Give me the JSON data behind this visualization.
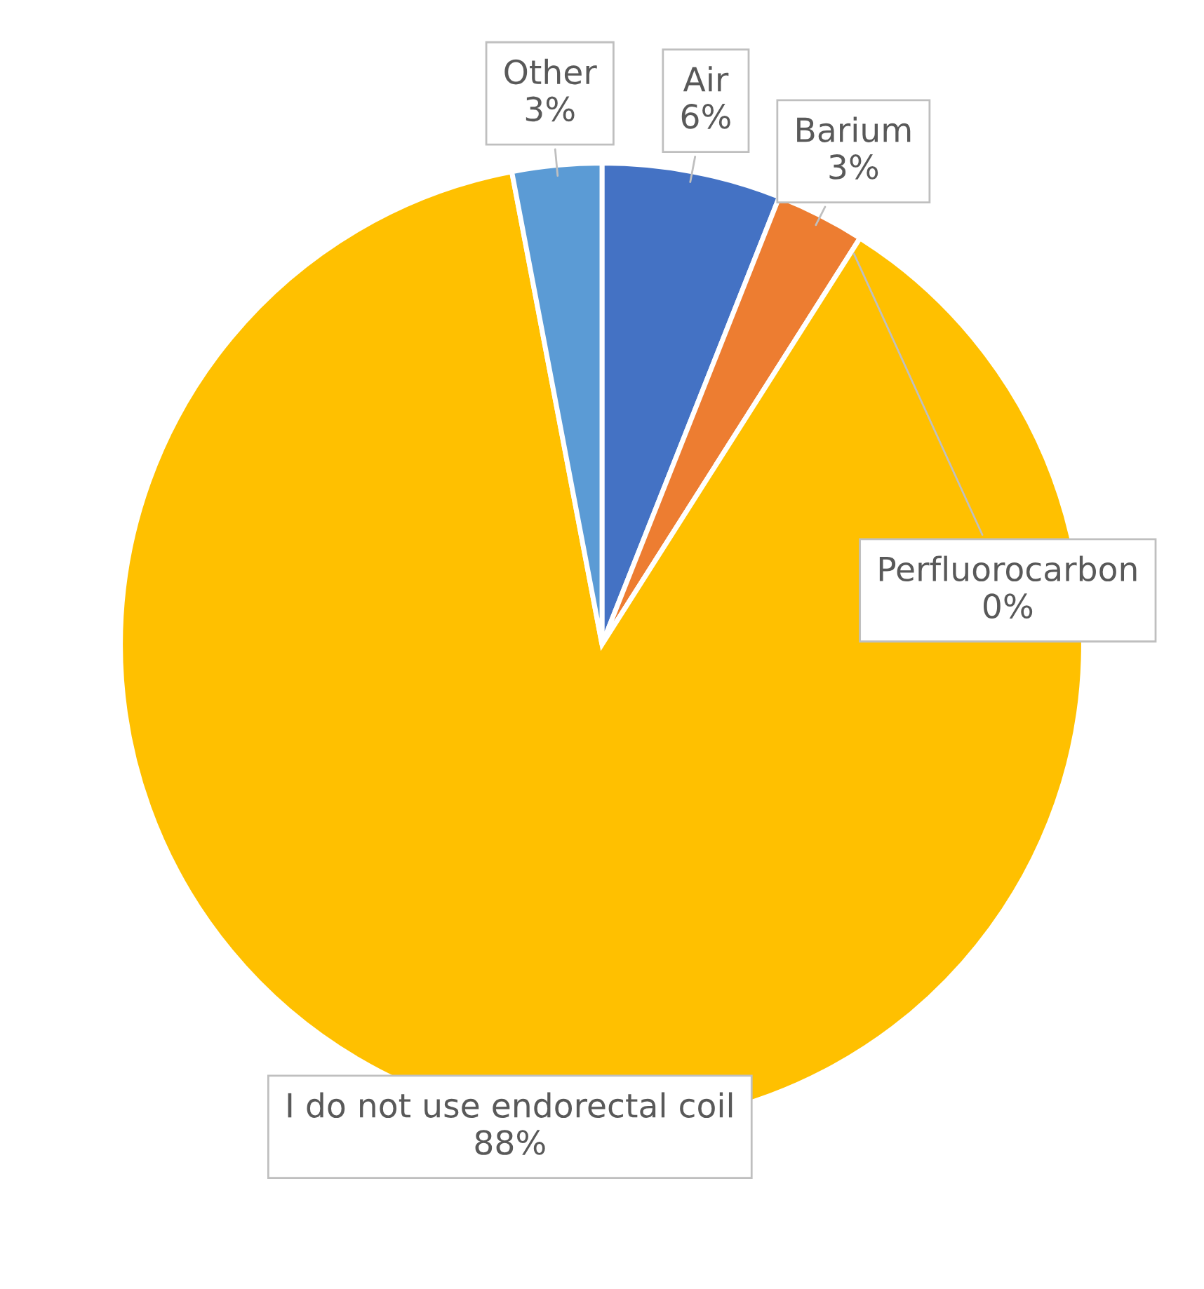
{
  "chart_data": {
    "type": "pie",
    "categories": [
      "Air",
      "Barium",
      "Perfluorocarbon",
      "I do not use endorectal coil",
      "Other"
    ],
    "values": [
      6,
      3,
      0,
      88,
      3
    ],
    "colors": [
      "#4472c4",
      "#ed7d31",
      "#a5a5a5",
      "#ffc000",
      "#5b9bd5"
    ],
    "value_labels": [
      "6%",
      "3%",
      "0%",
      "88%",
      "3%"
    ],
    "legend": false
  }
}
